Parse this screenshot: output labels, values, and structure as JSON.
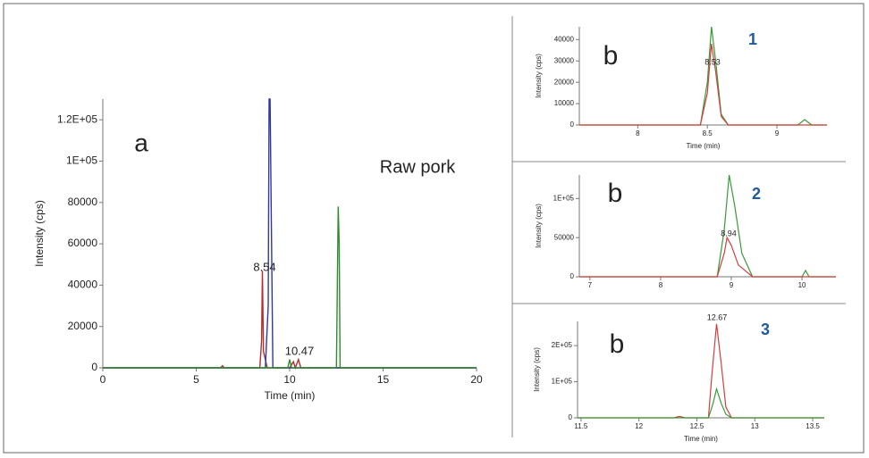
{
  "chart_data": [
    {
      "type": "line",
      "panel": "a",
      "title": "Raw pork",
      "annotations": [
        "8.54",
        "10.47"
      ],
      "xlabel": "Time (min)",
      "ylabel": "Intensity (cps)",
      "xlim": [
        0,
        20
      ],
      "xticks": [
        0,
        5,
        10,
        15,
        20
      ],
      "ylim": [
        0,
        130000
      ],
      "yticks": [
        0,
        20000,
        40000,
        60000,
        80000,
        {
          "value": 100000,
          "label": "1E+05"
        },
        {
          "value": 120000,
          "label": "1.2E+05"
        }
      ],
      "series": [
        {
          "color": "#b03030",
          "x": [
            0,
            6.3,
            6.4,
            6.5,
            8.4,
            8.5,
            8.54,
            8.6,
            8.8,
            9.0,
            10.0,
            10.2,
            10.3,
            10.47,
            10.6,
            20
          ],
          "values": [
            0,
            0,
            1000,
            0,
            0,
            13000,
            47000,
            8000,
            0,
            0,
            0,
            3000,
            0,
            4000,
            0,
            0
          ]
        },
        {
          "color": "#2e3a9e",
          "x": [
            0,
            8.7,
            8.85,
            8.9,
            8.95,
            9.1,
            20
          ],
          "values": [
            0,
            0,
            30000,
            130000,
            130000,
            0,
            0
          ]
        },
        {
          "color": "#2e8b2e",
          "x": [
            0,
            9.9,
            10.0,
            10.1,
            12.5,
            12.6,
            12.65,
            12.7,
            12.8,
            20
          ],
          "values": [
            0,
            0,
            4000,
            0,
            0,
            78000,
            60000,
            0,
            0,
            0
          ]
        }
      ]
    },
    {
      "type": "line",
      "panel": "b",
      "number": "1",
      "annotations": [
        "8.53"
      ],
      "xlabel": "Time (min)",
      "ylabel": "Intensity (cps)",
      "xlim": [
        7.58,
        9.36
      ],
      "xticks": [
        8,
        8.5,
        9
      ],
      "ylim": [
        0,
        46000
      ],
      "yticks": [
        0,
        10000,
        20000,
        30000,
        40000
      ],
      "series": [
        {
          "color": "#3a9a3a",
          "x": [
            7.58,
            8.45,
            8.5,
            8.53,
            8.56,
            8.6,
            8.65,
            9.15,
            9.2,
            9.25,
            9.36
          ],
          "values": [
            0,
            0,
            20000,
            46000,
            30000,
            5000,
            0,
            0,
            2500,
            0,
            0
          ]
        },
        {
          "color": "#d04040",
          "x": [
            7.58,
            8.45,
            8.5,
            8.53,
            8.56,
            8.6,
            8.65,
            9.36
          ],
          "values": [
            0,
            0,
            15000,
            38000,
            25000,
            4000,
            0,
            0
          ]
        }
      ]
    },
    {
      "type": "line",
      "panel": "b",
      "number": "2",
      "annotations": [
        "8.94"
      ],
      "ylabel": "Intensity (cps)",
      "xlim": [
        6.85,
        10.48
      ],
      "xticks": [
        7,
        8,
        9,
        10
      ],
      "ylim": [
        0,
        130000
      ],
      "yticks": [
        0,
        50000,
        {
          "value": 100000,
          "label": "1E+05"
        }
      ],
      "series": [
        {
          "color": "#3a9a3a",
          "x": [
            6.85,
            8.8,
            8.9,
            8.97,
            9.05,
            9.15,
            9.3,
            10.0,
            10.05,
            10.1,
            10.48
          ],
          "values": [
            0,
            0,
            60000,
            130000,
            90000,
            30000,
            0,
            0,
            8000,
            0,
            0
          ]
        },
        {
          "color": "#d04040",
          "x": [
            6.85,
            8.8,
            8.9,
            8.94,
            9.0,
            9.1,
            9.3,
            10.48
          ],
          "values": [
            0,
            0,
            30000,
            50000,
            40000,
            15000,
            0,
            0
          ]
        }
      ]
    },
    {
      "type": "line",
      "panel": "b",
      "number": "3",
      "annotations": [
        "12.67"
      ],
      "xlabel": "Time (min)",
      "ylabel": "Intensity (cps)",
      "xlim": [
        11.47,
        13.6
      ],
      "xticks": [
        11.5,
        12,
        12.5,
        13,
        13.5
      ],
      "ylim": [
        0,
        267000
      ],
      "yticks": [
        0,
        {
          "value": 100000,
          "label": "1E+05"
        },
        {
          "value": 200000,
          "label": "2E+05"
        }
      ],
      "series": [
        {
          "color": "#d04040",
          "x": [
            11.47,
            12.3,
            12.35,
            12.4,
            12.6,
            12.63,
            12.67,
            12.71,
            12.75,
            12.8,
            13.6
          ],
          "values": [
            0,
            0,
            4000,
            0,
            0,
            120000,
            260000,
            150000,
            30000,
            0,
            0
          ]
        },
        {
          "color": "#3a9a3a",
          "x": [
            11.47,
            12.6,
            12.64,
            12.67,
            12.71,
            12.75,
            12.8,
            13.6
          ],
          "values": [
            0,
            0,
            40000,
            80000,
            40000,
            10000,
            0,
            0
          ]
        }
      ]
    }
  ]
}
